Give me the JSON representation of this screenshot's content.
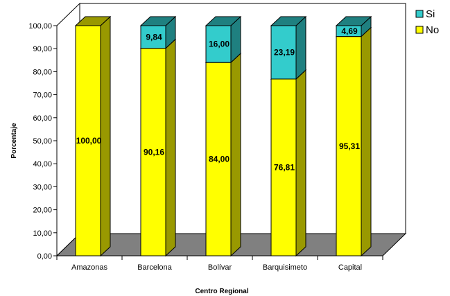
{
  "chart_data": {
    "type": "bar",
    "stacked": true,
    "three_d": true,
    "title": "",
    "xlabel": "Centro Regional",
    "ylabel": "Porcentaje",
    "ylim": [
      0,
      100
    ],
    "y_ticks": [
      "0,00",
      "10,00",
      "20,00",
      "30,00",
      "40,00",
      "50,00",
      "60,00",
      "70,00",
      "80,00",
      "90,00",
      "100,00"
    ],
    "categories": [
      "Amazonas",
      "Barcelona",
      "Bolívar",
      "Barquisimeto",
      "Capital"
    ],
    "series": [
      {
        "name": "No",
        "color": "#FFFF00",
        "side_color": "#999900",
        "values": [
          100.0,
          90.16,
          84.0,
          76.81,
          95.31
        ],
        "labels": [
          "100,00",
          "90,16",
          "84,00",
          "76,81",
          "95,31"
        ]
      },
      {
        "name": "Si",
        "color": "#33CCCC",
        "side_color": "#1F8080",
        "values": [
          0.0,
          9.84,
          16.0,
          23.19,
          4.69
        ],
        "labels": [
          "",
          "9,84",
          "16,00",
          "23,19",
          "4,69"
        ]
      }
    ],
    "legend": {
      "position": "top-right",
      "order": [
        "Si",
        "No"
      ]
    },
    "grid": false,
    "floor_color": "#808080",
    "wall_color": "#ffffff"
  }
}
